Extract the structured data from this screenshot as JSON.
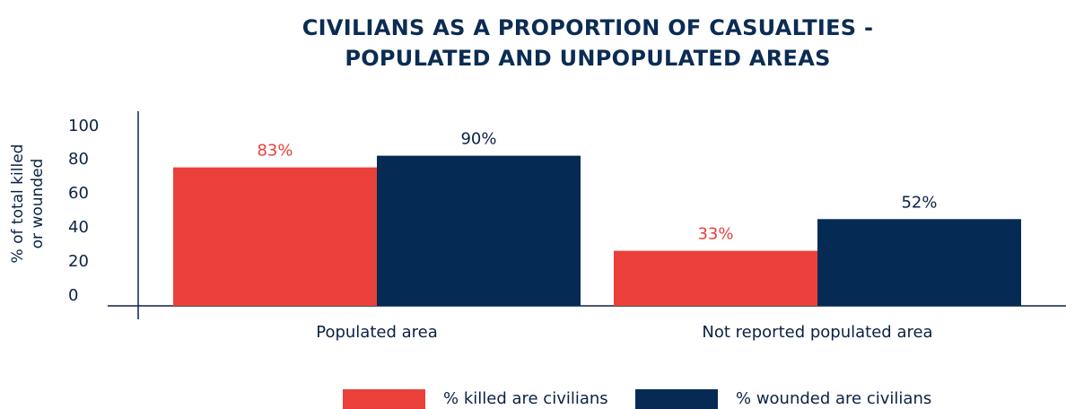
{
  "title_lines": [
    "CIVILIANS AS A PROPORTION OF CASUALTIES -",
    "POPULATED AND UNPOPULATED AREAS"
  ],
  "colors": {
    "killed": "#e9413a",
    "wounded": "#052b54",
    "text": "#0b2244",
    "axis": "#0b2244"
  },
  "chart_data": {
    "type": "bar",
    "title": "CIVILIANS AS A PROPORTION OF CASUALTIES - POPULATED AND UNPOPULATED AREAS",
    "categories": [
      "Populated area",
      "Not reported populated area"
    ],
    "series": [
      {
        "name": "% killed are civilians",
        "values": [
          83,
          33
        ],
        "labels": [
          "83%",
          "33%"
        ]
      },
      {
        "name": "% wounded are civilians",
        "values": [
          90,
          52
        ],
        "labels": [
          "90%",
          "52%"
        ]
      }
    ],
    "ylabel": "% of total killed or wounded",
    "ylabel_lines": [
      "% of total killed",
      "or wounded"
    ],
    "yticks": [
      0,
      20,
      40,
      60,
      80,
      100
    ],
    "ylim": [
      0,
      100
    ],
    "legend_position": "bottom",
    "grid": false
  }
}
